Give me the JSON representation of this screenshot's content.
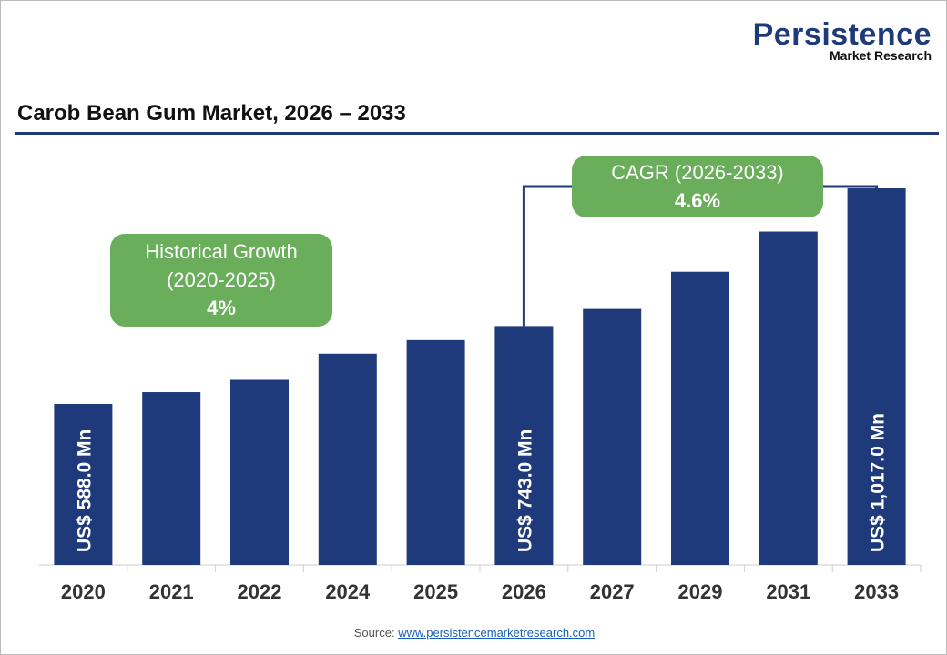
{
  "logo": {
    "name": "Persistence",
    "subtitle": "Market Research"
  },
  "title": "Carob Bean Gum Market, 2026 – 2033",
  "colors": {
    "bar": "#1f3a7a",
    "badge": "#6aad5b",
    "rule": "#1f3a7a"
  },
  "badges": {
    "historical": {
      "label1": "Historical Growth",
      "label2": "(2020-2025)",
      "value": "4%"
    },
    "cagr": {
      "label": "CAGR (2026-2033)",
      "value": "4.6%"
    }
  },
  "chart_data": {
    "type": "bar",
    "title": "Carob Bean Gum Market, 2026 – 2033",
    "categories": [
      "2020",
      "2021",
      "2022",
      "2024",
      "2025",
      "2026",
      "2027",
      "2029",
      "2031",
      "2033"
    ],
    "values": [
      588.0,
      611.5,
      636.0,
      688.0,
      715.0,
      743.0,
      777.0,
      851.0,
      931.0,
      1017.0
    ],
    "data_labels": {
      "0": "US$ 588.0 Mn",
      "5": "US$ 743.0 Mn",
      "9": "US$ 1,017.0 Mn"
    },
    "unit": "US$ Mn",
    "grid": false,
    "legend": "none"
  },
  "source": {
    "prefix": "Source:",
    "link": "www.persistencemarketresearch.com"
  }
}
